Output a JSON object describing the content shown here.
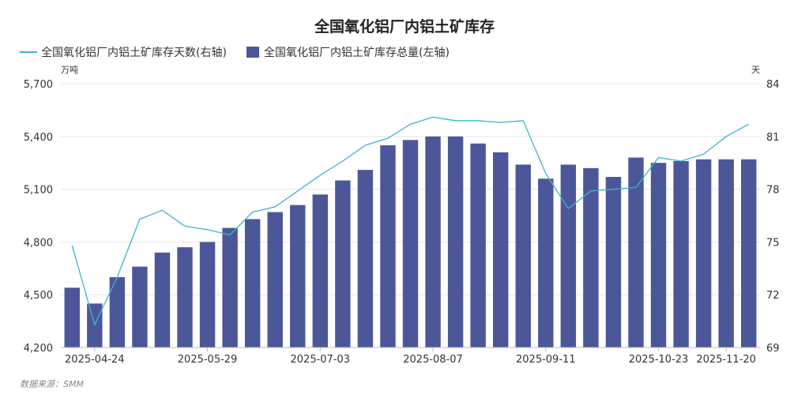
{
  "chart_data": {
    "type": "bar",
    "title": "全国氧化铝厂内铝土矿库存",
    "source": "数据来源：SMM",
    "left_unit": "万吨",
    "right_unit": "天",
    "left_axis": {
      "min": 4200,
      "max": 5700,
      "ticks": [
        "4,200",
        "4,500",
        "4,800",
        "5,100",
        "5,400",
        "5,700"
      ],
      "tick_values": [
        4200,
        4500,
        4800,
        5100,
        5400,
        5700
      ]
    },
    "right_axis": {
      "min": 69,
      "max": 84,
      "ticks": [
        "69",
        "72",
        "75",
        "78",
        "81",
        "84"
      ],
      "tick_values": [
        69,
        72,
        75,
        78,
        81,
        84
      ]
    },
    "x_tick_labels": [
      {
        "index": 1,
        "label": "2025-04-24"
      },
      {
        "index": 6,
        "label": "2025-05-29"
      },
      {
        "index": 11,
        "label": "2025-07-03"
      },
      {
        "index": 16,
        "label": "2025-08-07"
      },
      {
        "index": 21,
        "label": "2025-09-11"
      },
      {
        "index": 26,
        "label": "2025-10-23"
      },
      {
        "index": 29,
        "label": "2025-11-20"
      }
    ],
    "series": [
      {
        "name": "全国氧化铝厂内铝土矿库存天数(右轴)",
        "type": "line",
        "axis": "right",
        "color": "#3fb3cf",
        "values": [
          74.8,
          70.3,
          73.0,
          76.3,
          76.8,
          75.9,
          75.7,
          75.4,
          76.7,
          77.0,
          77.9,
          78.8,
          79.6,
          80.5,
          80.9,
          81.7,
          82.1,
          81.9,
          81.9,
          81.8,
          81.9,
          78.9,
          76.9,
          77.9,
          78.0,
          78.1,
          79.8,
          79.6,
          80.0,
          81.0,
          81.7
        ]
      },
      {
        "name": "全国氧化铝厂内铝土矿库存总量(左轴)",
        "type": "bar",
        "axis": "left",
        "color": "#4c5799",
        "values": [
          4540,
          4450,
          4600,
          4660,
          4740,
          4770,
          4800,
          4880,
          4930,
          4970,
          5010,
          5070,
          5150,
          5210,
          5350,
          5380,
          5400,
          5400,
          5360,
          5310,
          5240,
          5160,
          5240,
          5220,
          5170,
          5280,
          5250,
          5260,
          5270,
          5270,
          5270
        ]
      }
    ]
  }
}
